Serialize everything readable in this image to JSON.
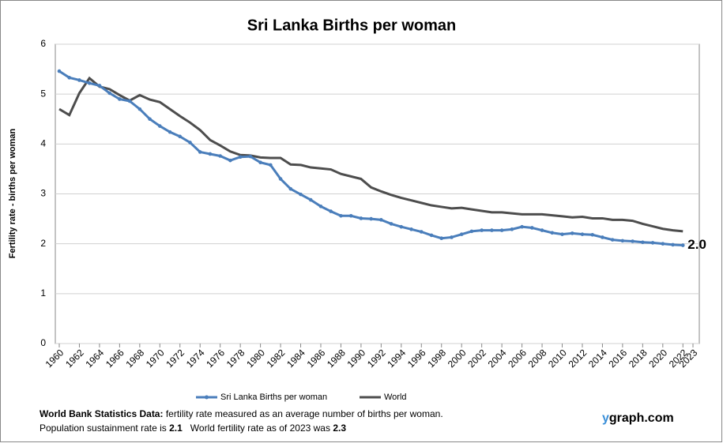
{
  "chart_data": {
    "type": "line",
    "title": "Sri Lanka Births per woman",
    "y_label": "Fertility rate  - births per woman",
    "x": [
      1960,
      1961,
      1962,
      1963,
      1964,
      1965,
      1966,
      1967,
      1968,
      1969,
      1970,
      1971,
      1972,
      1973,
      1974,
      1975,
      1976,
      1977,
      1978,
      1979,
      1980,
      1981,
      1982,
      1983,
      1984,
      1985,
      1986,
      1987,
      1988,
      1989,
      1990,
      1991,
      1992,
      1993,
      1994,
      1995,
      1996,
      1997,
      1998,
      1999,
      2000,
      2001,
      2002,
      2003,
      2004,
      2005,
      2006,
      2007,
      2008,
      2009,
      2010,
      2011,
      2012,
      2013,
      2014,
      2015,
      2016,
      2017,
      2018,
      2019,
      2020,
      2021,
      2022
    ],
    "series": [
      {
        "name": "Sri Lanka Births per woman",
        "color": "#4a7ebb",
        "markers": true,
        "end_label": "2.0",
        "values": [
          5.46,
          5.33,
          5.28,
          5.22,
          5.17,
          5.02,
          4.9,
          4.86,
          4.7,
          4.5,
          4.36,
          4.24,
          4.15,
          4.03,
          3.84,
          3.8,
          3.76,
          3.67,
          3.74,
          3.75,
          3.63,
          3.58,
          3.3,
          3.1,
          2.99,
          2.88,
          2.75,
          2.65,
          2.56,
          2.56,
          2.51,
          2.5,
          2.48,
          2.4,
          2.34,
          2.29,
          2.24,
          2.17,
          2.11,
          2.13,
          2.19,
          2.25,
          2.27,
          2.27,
          2.27,
          2.29,
          2.34,
          2.32,
          2.27,
          2.22,
          2.19,
          2.21,
          2.19,
          2.18,
          2.13,
          2.08,
          2.06,
          2.05,
          2.03,
          2.02,
          2.0,
          1.98,
          1.97
        ]
      },
      {
        "name": "World",
        "color": "#4d4d4d",
        "markers": false,
        "values": [
          4.7,
          4.58,
          5.02,
          5.32,
          5.15,
          5.1,
          4.98,
          4.87,
          4.98,
          4.89,
          4.84,
          4.7,
          4.56,
          4.43,
          4.28,
          4.08,
          3.97,
          3.85,
          3.78,
          3.77,
          3.73,
          3.72,
          3.72,
          3.59,
          3.58,
          3.53,
          3.51,
          3.49,
          3.4,
          3.35,
          3.3,
          3.13,
          3.05,
          2.98,
          2.92,
          2.87,
          2.82,
          2.77,
          2.74,
          2.71,
          2.72,
          2.69,
          2.66,
          2.63,
          2.63,
          2.61,
          2.59,
          2.59,
          2.59,
          2.57,
          2.55,
          2.53,
          2.54,
          2.51,
          2.51,
          2.48,
          2.48,
          2.46,
          2.4,
          2.35,
          2.3,
          2.27,
          2.25
        ]
      }
    ],
    "xlim": [
      1960,
      2023
    ],
    "xticks": [
      1960,
      1962,
      1964,
      1966,
      1968,
      1970,
      1972,
      1974,
      1976,
      1978,
      1980,
      1982,
      1984,
      1986,
      1988,
      1990,
      1992,
      1994,
      1996,
      1998,
      2000,
      2002,
      2004,
      2006,
      2008,
      2010,
      2012,
      2014,
      2016,
      2018,
      2020,
      2022,
      2023
    ],
    "ylim": [
      0,
      6
    ],
    "yticks": [
      0,
      1,
      2,
      3,
      4,
      5,
      6
    ],
    "grid": true,
    "legend": "bottom"
  },
  "footer": {
    "source_label": "World Bank Statistics Data:",
    "source_text": " fertility rate measured as an average number  of births per woman.",
    "sustain_label": "Population sustainment rate is ",
    "sustain_value": "2.1",
    "world_label": "   World fertility rate as of 2023 was ",
    "world_value": "2.3",
    "brand_prefix": "y",
    "brand_rest": "graph.com"
  }
}
